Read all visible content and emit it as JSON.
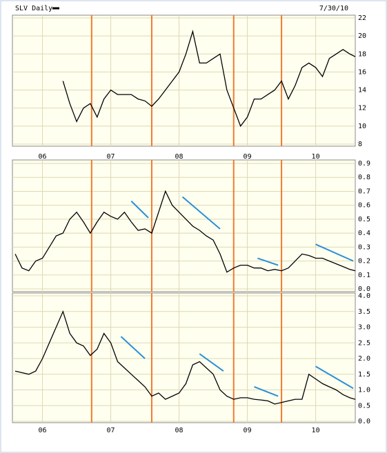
{
  "chart_data": [
    {
      "type": "line",
      "title": "SLV Daily",
      "subtitle": "7/30/10",
      "color": "#000000",
      "x": [
        2006.3,
        2006.4,
        2006.5,
        2006.6,
        2006.7,
        2006.8,
        2006.9,
        2007.0,
        2007.1,
        2007.2,
        2007.3,
        2007.4,
        2007.5,
        2007.6,
        2007.7,
        2007.8,
        2007.9,
        2008.0,
        2008.1,
        2008.2,
        2008.3,
        2008.4,
        2008.5,
        2008.6,
        2008.7,
        2008.8,
        2008.9,
        2009.0,
        2009.1,
        2009.2,
        2009.3,
        2009.4,
        2009.5,
        2009.6,
        2009.7,
        2009.8,
        2009.9,
        2010.0,
        2010.1,
        2010.2,
        2010.3,
        2010.4,
        2010.5,
        2010.58
      ],
      "values": [
        15,
        12.5,
        10.5,
        12,
        12.5,
        11,
        13,
        14,
        13.5,
        13.5,
        13.5,
        13,
        12.8,
        12.2,
        13,
        14,
        15,
        16,
        18,
        20.5,
        17,
        17,
        17.5,
        18,
        14,
        12,
        10,
        11,
        13,
        13,
        13.5,
        14,
        15,
        13,
        14.5,
        16.5,
        17,
        16.5,
        15.5,
        17.5,
        18,
        18.5,
        18,
        17.7
      ],
      "xlim": [
        2005.56,
        2010.58
      ],
      "ylim": [
        8,
        22
      ],
      "yticks": [
        8,
        10,
        12,
        14,
        16,
        18,
        20,
        22
      ],
      "xticks": [
        {
          "value": 2006,
          "label": "06"
        },
        {
          "value": 2007,
          "label": "07"
        },
        {
          "value": 2008,
          "label": "08"
        },
        {
          "value": 2009,
          "label": "09"
        },
        {
          "value": 2010,
          "label": "10"
        }
      ],
      "vlines": [
        2006.72,
        2007.6,
        2008.8,
        2009.5
      ],
      "vline_color": "#f07b2a",
      "grid": true
    },
    {
      "type": "line",
      "color": "#000000",
      "x": [
        2005.6,
        2005.7,
        2005.8,
        2005.9,
        2006.0,
        2006.1,
        2006.2,
        2006.3,
        2006.4,
        2006.5,
        2006.6,
        2006.7,
        2006.8,
        2006.9,
        2007.0,
        2007.1,
        2007.2,
        2007.3,
        2007.4,
        2007.5,
        2007.6,
        2007.7,
        2007.8,
        2007.9,
        2008.0,
        2008.1,
        2008.2,
        2008.3,
        2008.4,
        2008.5,
        2008.6,
        2008.7,
        2008.8,
        2008.9,
        2009.0,
        2009.1,
        2009.2,
        2009.3,
        2009.4,
        2009.5,
        2009.6,
        2009.7,
        2009.8,
        2009.9,
        2010.0,
        2010.1,
        2010.2,
        2010.3,
        2010.4,
        2010.5,
        2010.58
      ],
      "values": [
        0.25,
        0.15,
        0.13,
        0.2,
        0.22,
        0.3,
        0.38,
        0.4,
        0.5,
        0.55,
        0.48,
        0.4,
        0.48,
        0.55,
        0.52,
        0.5,
        0.55,
        0.48,
        0.42,
        0.43,
        0.4,
        0.55,
        0.7,
        0.6,
        0.55,
        0.5,
        0.45,
        0.42,
        0.38,
        0.35,
        0.25,
        0.12,
        0.15,
        0.17,
        0.17,
        0.15,
        0.15,
        0.13,
        0.14,
        0.13,
        0.15,
        0.2,
        0.25,
        0.24,
        0.22,
        0.22,
        0.2,
        0.18,
        0.16,
        0.14,
        0.13
      ],
      "xlim": [
        2005.56,
        2010.58
      ],
      "ylim": [
        0,
        0.9
      ],
      "yticks": [
        {
          "value": 0,
          "label": "0.0"
        },
        0.1,
        0.2,
        0.3,
        0.4,
        0.5,
        0.6,
        0.7,
        0.8,
        0.9
      ],
      "vlines": [
        2006.72,
        2007.6,
        2008.8,
        2009.5
      ],
      "vline_color": "#f07b2a",
      "trendlines": [
        [
          2007.3,
          0.63,
          2007.55,
          0.51
        ],
        [
          2008.05,
          0.66,
          2008.6,
          0.43
        ],
        [
          2009.15,
          0.22,
          2009.45,
          0.17
        ],
        [
          2010.0,
          0.32,
          2010.55,
          0.2
        ]
      ],
      "trend_color": "#2a8fd8",
      "grid": true
    },
    {
      "type": "line",
      "color": "#000000",
      "x": [
        2005.6,
        2005.7,
        2005.8,
        2005.9,
        2006.0,
        2006.1,
        2006.2,
        2006.3,
        2006.4,
        2006.5,
        2006.6,
        2006.7,
        2006.8,
        2006.9,
        2007.0,
        2007.1,
        2007.2,
        2007.3,
        2007.4,
        2007.5,
        2007.6,
        2007.7,
        2007.8,
        2007.9,
        2008.0,
        2008.1,
        2008.2,
        2008.3,
        2008.4,
        2008.5,
        2008.6,
        2008.7,
        2008.8,
        2008.9,
        2009.0,
        2009.1,
        2009.2,
        2009.3,
        2009.4,
        2009.5,
        2009.6,
        2009.7,
        2009.8,
        2009.9,
        2010.0,
        2010.1,
        2010.2,
        2010.3,
        2010.4,
        2010.5,
        2010.58
      ],
      "values": [
        1.6,
        1.55,
        1.5,
        1.6,
        2.0,
        2.5,
        3.0,
        3.5,
        2.8,
        2.5,
        2.4,
        2.1,
        2.3,
        2.8,
        2.5,
        1.9,
        1.7,
        1.5,
        1.3,
        1.1,
        0.8,
        0.9,
        0.7,
        0.8,
        0.9,
        1.2,
        1.8,
        1.9,
        1.7,
        1.5,
        1.0,
        0.8,
        0.7,
        0.75,
        0.75,
        0.7,
        0.68,
        0.65,
        0.55,
        0.6,
        0.65,
        0.7,
        0.7,
        1.5,
        1.35,
        1.2,
        1.1,
        1.0,
        0.85,
        0.75,
        0.7
      ],
      "xlim": [
        2005.56,
        2010.58
      ],
      "ylim": [
        0,
        4
      ],
      "yticks": [
        {
          "value": 0,
          "label": "0.0"
        },
        0.5,
        {
          "value": 1,
          "label": "1.0"
        },
        1.5,
        {
          "value": 2,
          "label": "2.0"
        },
        2.5,
        {
          "value": 3,
          "label": "3.0"
        },
        3.5,
        {
          "value": 4,
          "label": "4.0"
        }
      ],
      "xticks": [
        {
          "value": 2006,
          "label": "06"
        },
        {
          "value": 2007,
          "label": "07"
        },
        {
          "value": 2008,
          "label": "08"
        },
        {
          "value": 2009,
          "label": "09"
        },
        {
          "value": 2010,
          "label": "10"
        }
      ],
      "vlines": [
        2006.72,
        2007.6,
        2008.8,
        2009.5
      ],
      "vline_color": "#f07b2a",
      "trendlines": [
        [
          2007.15,
          2.7,
          2007.5,
          2.0
        ],
        [
          2008.3,
          2.15,
          2008.65,
          1.6
        ],
        [
          2009.1,
          1.1,
          2009.45,
          0.8
        ],
        [
          2010.0,
          1.75,
          2010.55,
          1.05
        ]
      ],
      "trend_color": "#2a8fd8",
      "grid": true
    }
  ]
}
